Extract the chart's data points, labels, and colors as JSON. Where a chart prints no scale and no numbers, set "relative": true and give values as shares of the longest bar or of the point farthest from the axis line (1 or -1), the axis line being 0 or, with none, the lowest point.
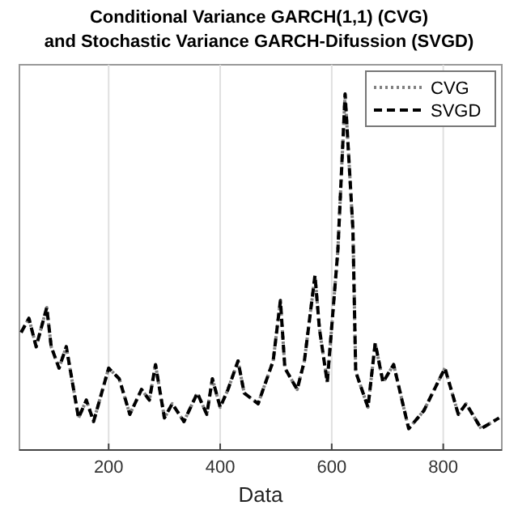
{
  "chart_data": {
    "type": "line",
    "title": "Conditional Variance GARCH(1,1) (CVG)",
    "subtitle": "and Stochastic Variance GARCH-Difussion (SVGD)",
    "xlabel": "Data",
    "relative": true,
    "x": [
      43,
      57,
      70,
      89,
      97,
      111,
      124,
      146,
      160,
      173,
      200,
      219,
      238,
      259,
      273,
      284,
      300,
      314,
      335,
      359,
      376,
      386,
      400,
      414,
      432,
      443,
      468,
      495,
      508,
      516,
      538,
      551,
      570,
      578,
      592,
      611,
      624,
      638,
      643,
      665,
      678,
      692,
      711,
      738,
      765,
      803,
      827,
      841,
      868,
      900
    ],
    "series": [
      {
        "name": "CVG",
        "color": "#808080",
        "line_style": "dotted",
        "values": [
          0.33,
          0.37,
          0.29,
          0.4,
          0.29,
          0.23,
          0.29,
          0.09,
          0.14,
          0.08,
          0.23,
          0.2,
          0.1,
          0.17,
          0.14,
          0.24,
          0.09,
          0.13,
          0.08,
          0.16,
          0.1,
          0.2,
          0.12,
          0.17,
          0.25,
          0.16,
          0.13,
          0.25,
          0.42,
          0.23,
          0.17,
          0.25,
          0.49,
          0.34,
          0.19,
          0.56,
          1.0,
          0.62,
          0.22,
          0.12,
          0.3,
          0.19,
          0.24,
          0.06,
          0.11,
          0.23,
          0.1,
          0.13,
          0.06,
          0.09
        ]
      },
      {
        "name": "SVGD",
        "color": "#000000",
        "line_style": "dashed",
        "values": [
          0.33,
          0.37,
          0.29,
          0.4,
          0.29,
          0.23,
          0.29,
          0.09,
          0.14,
          0.08,
          0.23,
          0.2,
          0.1,
          0.17,
          0.14,
          0.24,
          0.09,
          0.13,
          0.08,
          0.16,
          0.1,
          0.2,
          0.12,
          0.17,
          0.25,
          0.16,
          0.13,
          0.25,
          0.42,
          0.23,
          0.17,
          0.25,
          0.49,
          0.34,
          0.19,
          0.56,
          1.0,
          0.62,
          0.22,
          0.12,
          0.3,
          0.19,
          0.24,
          0.06,
          0.11,
          0.23,
          0.1,
          0.13,
          0.06,
          0.09
        ]
      }
    ],
    "xlim": [
      40,
      905
    ],
    "xticks": [
      200,
      400,
      600,
      800
    ],
    "grid": "x",
    "legend": "top right"
  }
}
